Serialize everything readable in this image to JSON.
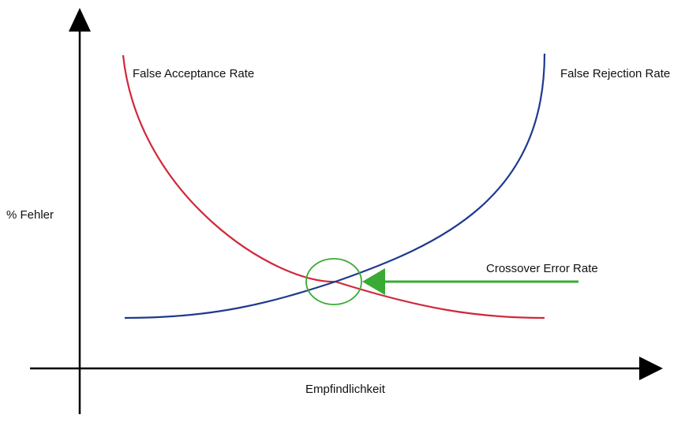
{
  "diagram": {
    "y_axis_label": "% Fehler",
    "x_axis_label": "Empfindlichkeit",
    "curves": {
      "far": {
        "label": "False Acceptance Rate",
        "color": "#d0293a"
      },
      "frr": {
        "label": "False Rejection Rate",
        "color": "#1e3a8f"
      }
    },
    "crossover": {
      "label": "Crossover Error Rate",
      "color": "#3aaa35"
    },
    "axis_color": "#000000"
  }
}
